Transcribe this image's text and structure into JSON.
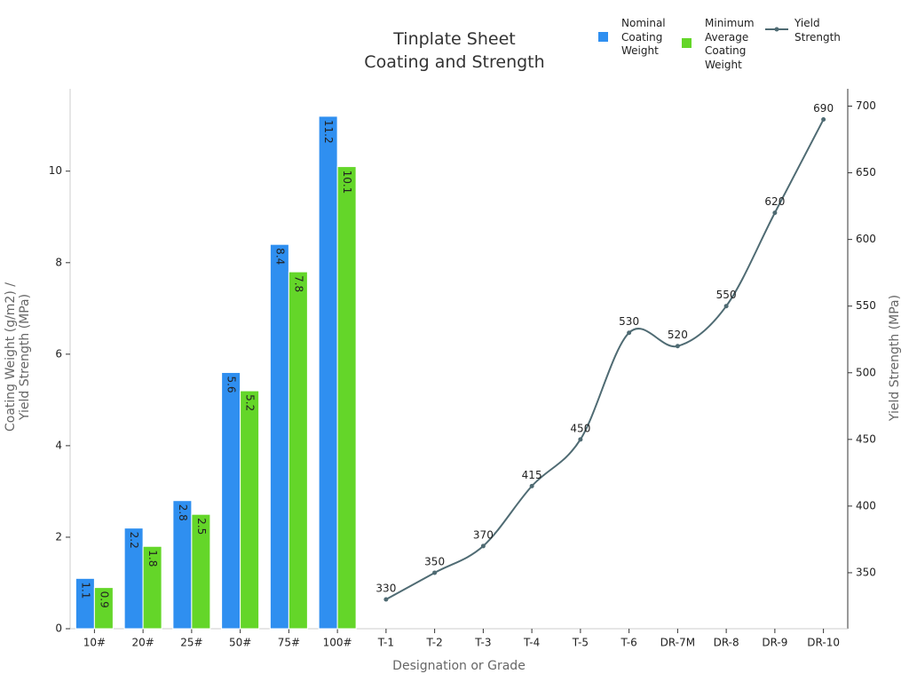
{
  "chart_data": {
    "type": "bar",
    "title": "Tinplate Sheet\nCoating and Strength",
    "x_label": "Designation or Grade",
    "y_label": "Coating Weight (g/m2) /\nYield Strength (MPa)",
    "y2_label": "Yield Strength (MPa)",
    "categories": [
      "10#",
      "20#",
      "25#",
      "50#",
      "75#",
      "100#",
      "T-1",
      "T-2",
      "T-3",
      "T-4",
      "T-5",
      "T-6",
      "DR-7M",
      "DR-8",
      "DR-9",
      "DR-10"
    ],
    "series": [
      {
        "name": "Nominal Coating Weight",
        "type": "bar",
        "color": "#2f8ff0",
        "values": [
          1.1,
          2.2,
          2.8,
          5.6,
          8.4,
          11.2,
          null,
          null,
          null,
          null,
          null,
          null,
          null,
          null,
          null,
          null
        ]
      },
      {
        "name": "Minimum Average Coating Weight",
        "type": "bar",
        "color": "#64d629",
        "values": [
          0.9,
          1.8,
          2.5,
          5.2,
          7.8,
          10.1,
          null,
          null,
          null,
          null,
          null,
          null,
          null,
          null,
          null,
          null
        ]
      },
      {
        "name": "Yield Strength",
        "type": "line",
        "axis": "y2",
        "color": "#4f6b73",
        "values": [
          null,
          null,
          null,
          null,
          null,
          null,
          330,
          350,
          370,
          415,
          450,
          530,
          520,
          550,
          620,
          690
        ]
      }
    ],
    "ylim": [
      0,
      11.8
    ],
    "yticks": [
      0,
      2,
      4,
      6,
      8,
      10
    ],
    "y2lim": [
      308,
      713
    ],
    "y2ticks": [
      350,
      400,
      450,
      500,
      550,
      600,
      650,
      700
    ],
    "legend": "top-right",
    "grid": false
  }
}
